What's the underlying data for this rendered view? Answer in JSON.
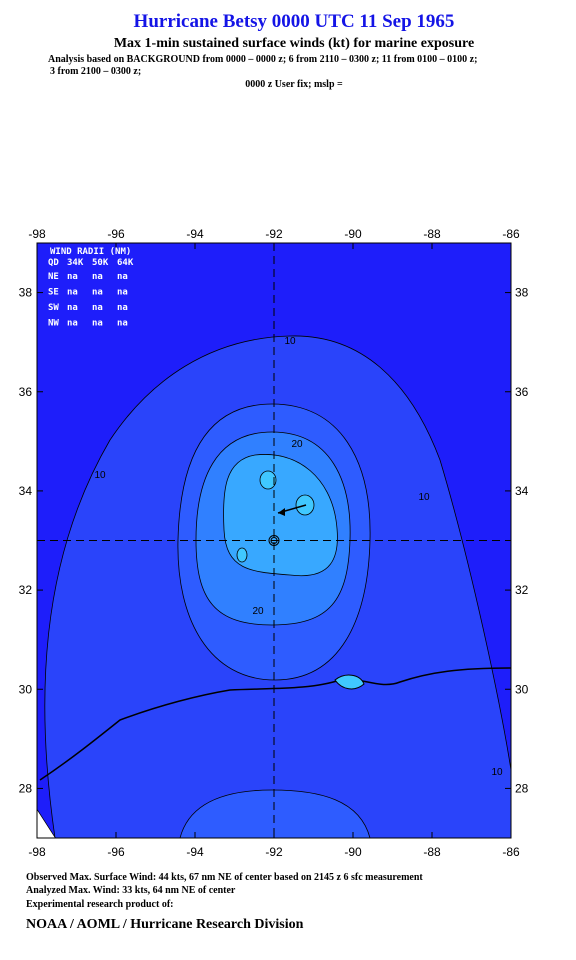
{
  "header": {
    "title": "Hurricane Betsy 0000 UTC 11 Sep 1965",
    "subtitle": "Max 1-min sustained surface winds (kt) for marine exposure",
    "analysis": "Analysis based on  BACKGROUND from 0000 – 0000 z;  6 from 2110 – 0300 z;  11 from 0100 – 0100 z;",
    "analysis_cont": "3 from 2100 – 0300 z;",
    "fix": "0000 z User fix; mslp ="
  },
  "map": {
    "xlim": [
      -98,
      -86
    ],
    "ylim": [
      27,
      39
    ],
    "xticks": [
      -98,
      -96,
      -94,
      -92,
      -90,
      -88,
      -86
    ],
    "yticks": [
      28,
      30,
      32,
      34,
      36,
      38
    ],
    "center": [
      -92,
      33
    ],
    "wind_radii": {
      "title": "WIND RADII (NM)",
      "header": [
        "QD",
        "34K",
        "50K",
        "64K"
      ],
      "rows": [
        [
          "NE",
          "na",
          "na",
          "na"
        ],
        [
          "SE",
          "na",
          "na",
          "na"
        ],
        [
          "SW",
          "na",
          "na",
          "na"
        ],
        [
          "NW",
          "na",
          "na",
          "na"
        ]
      ]
    },
    "contour_labels": [
      10,
      10,
      20,
      10,
      20,
      10
    ]
  },
  "footer": {
    "observed": "Observed Max. Surface Wind: 44 kts, 67 nm NE of center based on 2145 z 6 sfc measurement",
    "analyzed": "Analyzed Max. Wind: 33 kts, 64 nm NE of center",
    "experimental": "Experimental research product of:",
    "org": "NOAA / AOML / Hurricane Research Division"
  }
}
